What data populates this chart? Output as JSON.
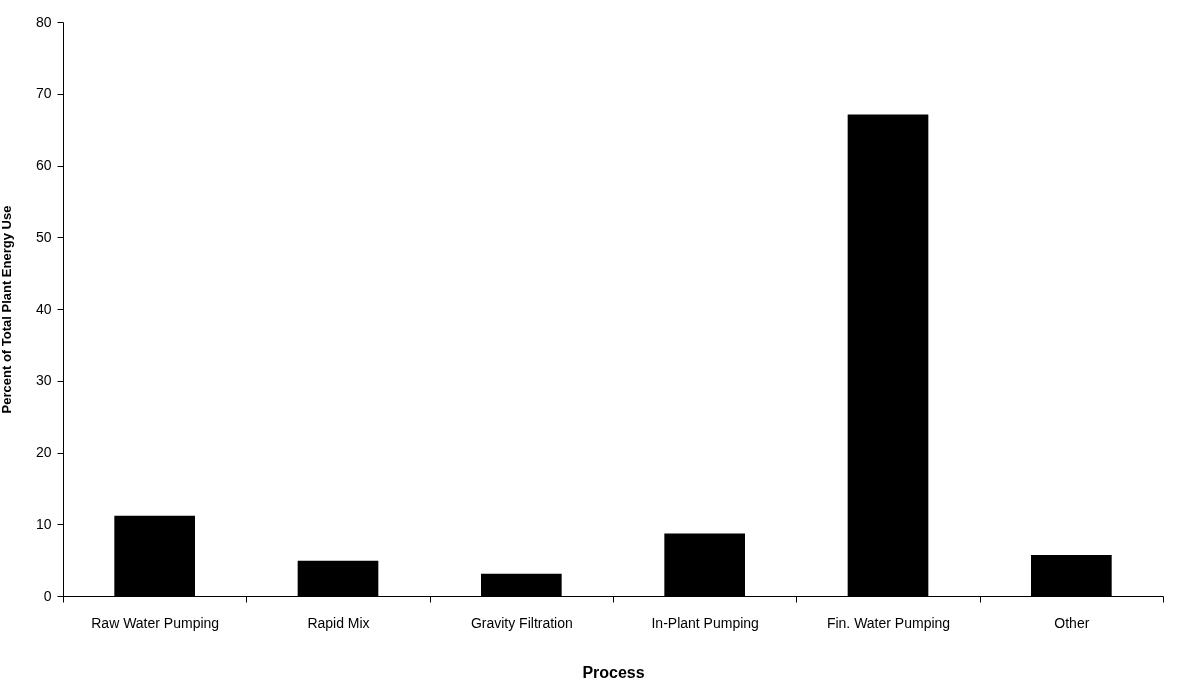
{
  "chart_data": {
    "type": "bar",
    "xlabel": "Process",
    "ylabel": "Percent of Total Plant Energy Use",
    "categories": [
      "Raw Water Pumping",
      "Rapid Mix",
      "Gravity Filtration",
      "In-Plant Pumping",
      "Fin. Water Pumping",
      "Other"
    ],
    "values": [
      11.2,
      4.9,
      3.1,
      8.7,
      67.1,
      5.7
    ],
    "color": "#000000",
    "ylim": [
      0,
      80
    ],
    "yticks": [
      0,
      10,
      20,
      30,
      40,
      50,
      60,
      70,
      80
    ],
    "grid": false
  }
}
